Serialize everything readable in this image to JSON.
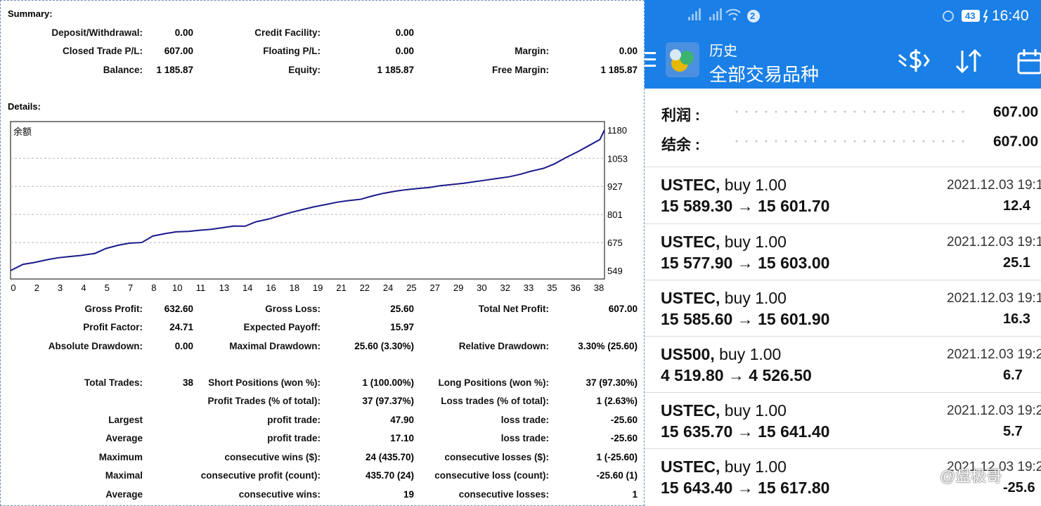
{
  "report": {
    "summary_label": "Summary:",
    "details_label": "Details:",
    "summary": [
      {
        "label": "Deposit/Withdrawal:",
        "value": "0.00"
      },
      {
        "label": "Credit Facility:",
        "value": "0.00"
      },
      {
        "label": "Closed Trade P/L:",
        "value": "607.00"
      },
      {
        "label": "Floating P/L:",
        "value": "0.00"
      },
      {
        "label": "Margin:",
        "value": "0.00"
      },
      {
        "label": "Balance:",
        "value": "1 185.87"
      },
      {
        "label": "Equity:",
        "value": "1 185.87"
      },
      {
        "label": "Free Margin:",
        "value": "1 185.87"
      }
    ],
    "stats": [
      {
        "label": "Gross Profit:",
        "value": "632.60"
      },
      {
        "label": "Gross Loss:",
        "value": "25.60"
      },
      {
        "label": "Total Net Profit:",
        "value": "607.00"
      },
      {
        "label": "Profit Factor:",
        "value": "24.71"
      },
      {
        "label": "Expected Payoff:",
        "value": "15.97"
      },
      {
        "label": "Absolute Drawdown:",
        "value": "0.00"
      },
      {
        "label": "Maximal Drawdown:",
        "value": "25.60 (3.30%)"
      },
      {
        "label": "Relative Drawdown:",
        "value": "3.30% (25.60)"
      },
      {
        "label": "Total Trades:",
        "value": "38"
      },
      {
        "label": "Short Positions (won %):",
        "value": "1 (100.00%)"
      },
      {
        "label": "Long Positions (won %):",
        "value": "37 (97.30%)"
      },
      {
        "label": "Profit Trades (% of total):",
        "value": "37 (97.37%)"
      },
      {
        "label": "Loss trades (% of total):",
        "value": "1 (2.63%)"
      },
      {
        "label": "Largest",
        "value": ""
      },
      {
        "label": "profit trade:",
        "value": "47.90"
      },
      {
        "label": "loss trade:",
        "value": "-25.60"
      },
      {
        "label": "Average",
        "value": ""
      },
      {
        "label": "profit trade:",
        "value": "17.10"
      },
      {
        "label": "loss trade:",
        "value": "-25.60"
      },
      {
        "label": "Maximum",
        "value": ""
      },
      {
        "label": "consecutive wins ($):",
        "value": "24 (435.70)"
      },
      {
        "label": "consecutive losses ($):",
        "value": "1 (-25.60)"
      },
      {
        "label": "Maximal",
        "value": ""
      },
      {
        "label": "consecutive profit (count):",
        "value": "435.70 (24)"
      },
      {
        "label": "consecutive loss (count):",
        "value": "-25.60 (1)"
      },
      {
        "label": "Average",
        "value": ""
      },
      {
        "label": "consecutive wins:",
        "value": "19"
      },
      {
        "label": "consecutive losses:",
        "value": "1"
      }
    ]
  },
  "chart_data": {
    "type": "line",
    "title": "余额",
    "xlabel": "",
    "ylabel": "",
    "x_ticks": [
      "0",
      "2",
      "3",
      "4",
      "5",
      "7",
      "8",
      "10",
      "11",
      "13",
      "14",
      "16",
      "18",
      "19",
      "21",
      "22",
      "24",
      "25",
      "27",
      "29",
      "30",
      "32",
      "33",
      "35",
      "36",
      "38"
    ],
    "y_ticks": [
      "1180",
      "1053",
      "927",
      "801",
      "675",
      "549"
    ],
    "xlim": [
      0,
      38
    ],
    "ylim": [
      549,
      1180
    ],
    "grid": true,
    "color": "#1a1a8c",
    "series": [
      {
        "x": [
          0,
          0.8,
          1.5,
          2.3,
          3,
          3.8,
          4.5,
          5.4,
          6.1,
          6.9,
          7.6,
          8.4,
          9.1,
          9.9,
          10.6,
          11.4,
          12.1,
          12.8,
          13.6,
          14.3,
          15,
          15.7,
          16.5,
          17.2,
          17.9,
          18.7,
          19.4,
          20.2,
          20.9,
          21.6,
          22.4,
          23.1,
          23.8,
          24.6,
          25.3,
          26,
          26.8,
          27.5,
          28.2,
          29,
          29.7,
          30.4,
          31.2,
          31.9,
          32.6,
          33.3,
          34.1,
          34.8,
          35.5,
          36.3,
          37,
          37.7,
          38
        ],
        "y": [
          549,
          577,
          585,
          597,
          606,
          612,
          617,
          626,
          648,
          663,
          672,
          675,
          704,
          715,
          723,
          725,
          730,
          734,
          742,
          749,
          748,
          768,
          780,
          795,
          809,
          823,
          835,
          846,
          856,
          863,
          869,
          883,
          895,
          905,
          912,
          917,
          922,
          930,
          935,
          941,
          948,
          955,
          963,
          970,
          981,
          995,
          1008,
          1028,
          1055,
          1083,
          1110,
          1137,
          1180
        ]
      }
    ]
  },
  "phone": {
    "status": {
      "sim": "2",
      "battery": "43",
      "time": "16:40"
    },
    "app_title": "历史",
    "app_subtitle": "全部交易品种",
    "summary": [
      {
        "label": "利润 :",
        "value": "607.00"
      },
      {
        "label": "结余 :",
        "value": "607.00"
      }
    ],
    "trades": [
      {
        "symbol": "USTEC,",
        "dir": "buy 1.00",
        "prices": "15 589.30 → 15 601.70",
        "time": "2021.12.03 19:1",
        "profit": "12.4"
      },
      {
        "symbol": "USTEC,",
        "dir": "buy 1.00",
        "prices": "15 577.90 → 15 603.00",
        "time": "2021.12.03 19:1",
        "profit": "25.1"
      },
      {
        "symbol": "USTEC,",
        "dir": "buy 1.00",
        "prices": "15 585.60 → 15 601.90",
        "time": "2021.12.03 19:1",
        "profit": "16.3"
      },
      {
        "symbol": "US500,",
        "dir": "buy 1.00",
        "prices": "4 519.80 → 4 526.50",
        "time": "2021.12.03 19:2",
        "profit": "6.7"
      },
      {
        "symbol": "USTEC,",
        "dir": "buy 1.00",
        "prices": "15 635.70 → 15 641.40",
        "time": "2021.12.03 19:2",
        "profit": "5.7"
      },
      {
        "symbol": "USTEC,",
        "dir": "buy 1.00",
        "prices": "15 643.40 → 15 617.80",
        "time": "2021.12.03 19:2",
        "profit": "-25.6"
      }
    ],
    "watermark": "@盘极哥"
  }
}
